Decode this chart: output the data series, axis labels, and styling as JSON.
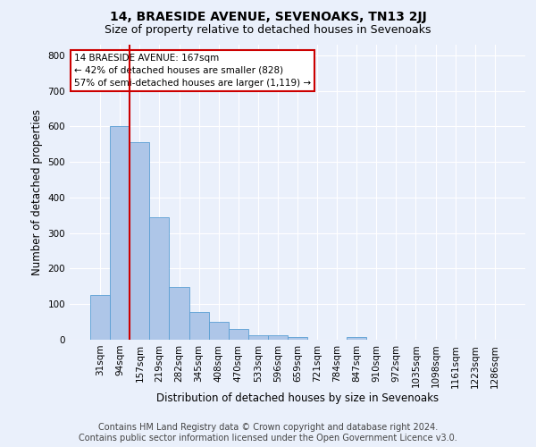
{
  "title": "14, BRAESIDE AVENUE, SEVENOAKS, TN13 2JJ",
  "subtitle": "Size of property relative to detached houses in Sevenoaks",
  "xlabel": "Distribution of detached houses by size in Sevenoaks",
  "ylabel": "Number of detached properties",
  "categories": [
    "31sqm",
    "94sqm",
    "157sqm",
    "219sqm",
    "282sqm",
    "345sqm",
    "408sqm",
    "470sqm",
    "533sqm",
    "596sqm",
    "659sqm",
    "721sqm",
    "784sqm",
    "847sqm",
    "910sqm",
    "972sqm",
    "1035sqm",
    "1098sqm",
    "1161sqm",
    "1223sqm",
    "1286sqm"
  ],
  "values": [
    125,
    600,
    555,
    345,
    148,
    77,
    51,
    30,
    13,
    13,
    8,
    0,
    0,
    7,
    0,
    0,
    0,
    0,
    0,
    0,
    0
  ],
  "bar_color": "#aec6e8",
  "bar_edgecolor": "#5a9fd4",
  "vline_color": "#cc0000",
  "annotation_text": "14 BRAESIDE AVENUE: 167sqm\n← 42% of detached houses are smaller (828)\n57% of semi-detached houses are larger (1,119) →",
  "annotation_box_edgecolor": "#cc0000",
  "annotation_box_facecolor": "#ffffff",
  "ylim": [
    0,
    830
  ],
  "yticks": [
    0,
    100,
    200,
    300,
    400,
    500,
    600,
    700,
    800
  ],
  "footer_line1": "Contains HM Land Registry data © Crown copyright and database right 2024.",
  "footer_line2": "Contains public sector information licensed under the Open Government Licence v3.0.",
  "background_color": "#eaf0fb",
  "plot_bg_color": "#eaf0fb",
  "title_fontsize": 10,
  "subtitle_fontsize": 9,
  "axis_label_fontsize": 8.5,
  "tick_fontsize": 7.5,
  "footer_fontsize": 7
}
